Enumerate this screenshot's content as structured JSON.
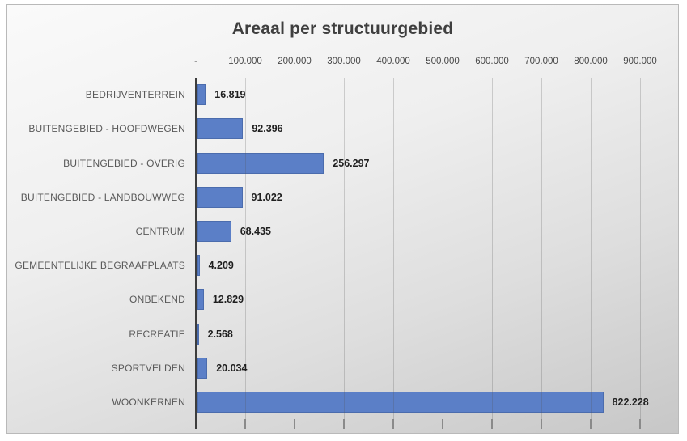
{
  "window": {
    "title": "Areaal per structuurgebied"
  },
  "chart_data": {
    "type": "bar",
    "orientation": "horizontal",
    "title": "Areaal per structuurgebied",
    "categories": [
      "BEDRIJVENTERREIN",
      "BUITENGEBIED - HOOFDWEGEN",
      "BUITENGEBIED - OVERIG",
      "BUITENGEBIED - LANDBOUWWEG",
      "CENTRUM",
      "GEMEENTELIJKE BEGRAAFPLAATS",
      "ONBEKEND",
      "RECREATIE",
      "SPORTVELDEN",
      "WOONKERNEN"
    ],
    "values": [
      16819,
      92396,
      256297,
      91022,
      68435,
      4209,
      12829,
      2568,
      20034,
      822228
    ],
    "value_labels": [
      "16.819",
      "92.396",
      "256.297",
      "91.022",
      "68.435",
      "4.209",
      "12.829",
      "2.568",
      "20.034",
      "822.228"
    ],
    "xlabel": "",
    "ylabel": "",
    "xlim": [
      0,
      900000
    ],
    "x_ticks": [
      0,
      100000,
      200000,
      300000,
      400000,
      500000,
      600000,
      700000,
      800000,
      900000
    ],
    "x_tick_labels": [
      "-",
      "100.000",
      "200.000",
      "300.000",
      "400.000",
      "500.000",
      "600.000",
      "700.000",
      "800.000",
      "900.000"
    ],
    "grid": true,
    "legend": false,
    "axis_position": "top",
    "colors": {
      "bar_fill": "#5B7FC7",
      "bar_border": "#3E5C98",
      "title_text": "#3F3F3F",
      "category_text": "#595959",
      "tick_text": "#474747",
      "value_text": "#1F1F1F",
      "axis_line": "#3D3D3D",
      "background_top": "#FAFAFA",
      "background_bottom": "#C7C7C7"
    }
  }
}
